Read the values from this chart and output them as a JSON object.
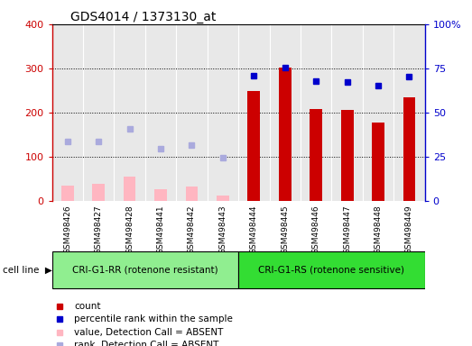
{
  "title": "GDS4014 / 1373130_at",
  "samples": [
    "GSM498426",
    "GSM498427",
    "GSM498428",
    "GSM498441",
    "GSM498442",
    "GSM498443",
    "GSM498444",
    "GSM498445",
    "GSM498446",
    "GSM498447",
    "GSM498448",
    "GSM498449"
  ],
  "group1_label": "CRI-G1-RR (rotenone resistant)",
  "group2_label": "CRI-G1-RS (rotenone sensitive)",
  "group1_count": 6,
  "group2_count": 6,
  "count_values": [
    null,
    null,
    null,
    null,
    null,
    null,
    248,
    302,
    208,
    205,
    178,
    234
  ],
  "rank_values": [
    null,
    null,
    null,
    null,
    null,
    null,
    284,
    302,
    272,
    270,
    260,
    282
  ],
  "absent_count_values": [
    35,
    38,
    55,
    27,
    32,
    12,
    null,
    null,
    null,
    null,
    null,
    null
  ],
  "absent_rank_values": [
    135,
    135,
    163,
    118,
    126,
    97,
    null,
    null,
    null,
    null,
    null,
    null
  ],
  "left_ylim": [
    0,
    400
  ],
  "right_yticks": [
    0,
    25,
    50,
    75,
    100
  ],
  "right_yticklabels": [
    "0",
    "25",
    "50",
    "75",
    "100%"
  ],
  "bar_color_present": "#cc0000",
  "bar_color_absent": "#ffb6c1",
  "dot_color_present": "#0000cc",
  "dot_color_absent": "#aaaadd",
  "group1_color": "#90ee90",
  "group2_color": "#33dd33",
  "left_axis_color": "#cc0000",
  "right_axis_color": "#0000cc",
  "bar_width": 0.4,
  "legend_items": [
    "count",
    "percentile rank within the sample",
    "value, Detection Call = ABSENT",
    "rank, Detection Call = ABSENT"
  ],
  "legend_colors": [
    "#cc0000",
    "#0000cc",
    "#ffb6c1",
    "#aaaadd"
  ],
  "legend_markers": [
    "s",
    "s",
    "s",
    "s"
  ]
}
